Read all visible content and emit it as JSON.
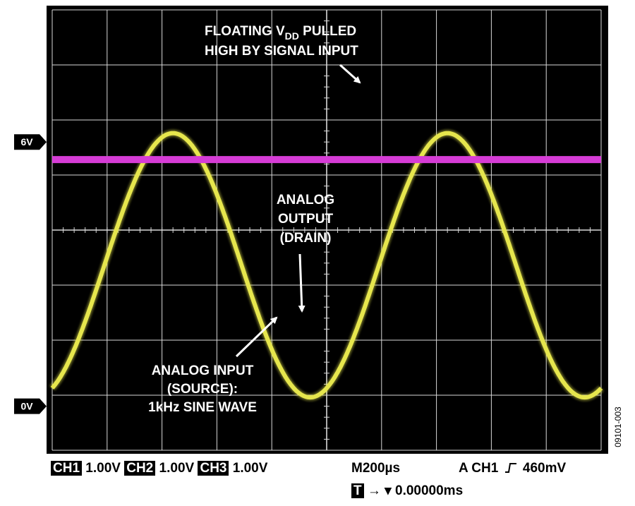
{
  "chart_data": {
    "type": "line",
    "title": "",
    "xlabel": "",
    "ylabel": "",
    "ylim": [
      -1,
      9
    ],
    "y_divisions": 8,
    "x_divisions": 10,
    "grid": true,
    "series": [
      {
        "name": "",
        "channel": "CH1",
        "color": "#e6e64d",
        "waveform": "sine",
        "frequency_text": "1kHz",
        "min_v": 0.2,
        "max_v": 6.2,
        "period_ms": 1.0
      },
      {
        "name": "",
        "channel": "CH2",
        "color": "#d63cd6",
        "waveform": "dc",
        "level_v": 5.6
      }
    ],
    "markers": [
      {
        "label": "6V",
        "value": 6
      },
      {
        "label": "0V",
        "value": 0
      }
    ],
    "annotations": {
      "floating": {
        "line1": "FLOATING V",
        "sub": "DD",
        "line1b": " PULLED",
        "line2": "HIGH BY SIGNAL INPUT"
      },
      "output": [
        "ANALOG",
        "OUTPUT",
        "(DRAIN)"
      ],
      "input": [
        "ANALOG INPUT",
        "(SOURCE):",
        "1kHz SINE WAVE"
      ]
    }
  },
  "status": {
    "ch1_tag": "CH1",
    "ch1_scale": "1.00V",
    "ch2_tag": "CH2",
    "ch2_scale": "1.00V",
    "ch3_tag": "CH3",
    "ch3_scale": "1.00V",
    "timebase": "M200µs",
    "trigger": "A  CH1",
    "trigger_level": "460mV",
    "trig_tag": "T",
    "trig_pos": "0.00000ms"
  },
  "figure_id": "09101-003",
  "colors": {
    "screen": "#000000",
    "grid": "#d9d9d9",
    "ch1": "#e6e64d",
    "ch2": "#d63cd6"
  }
}
